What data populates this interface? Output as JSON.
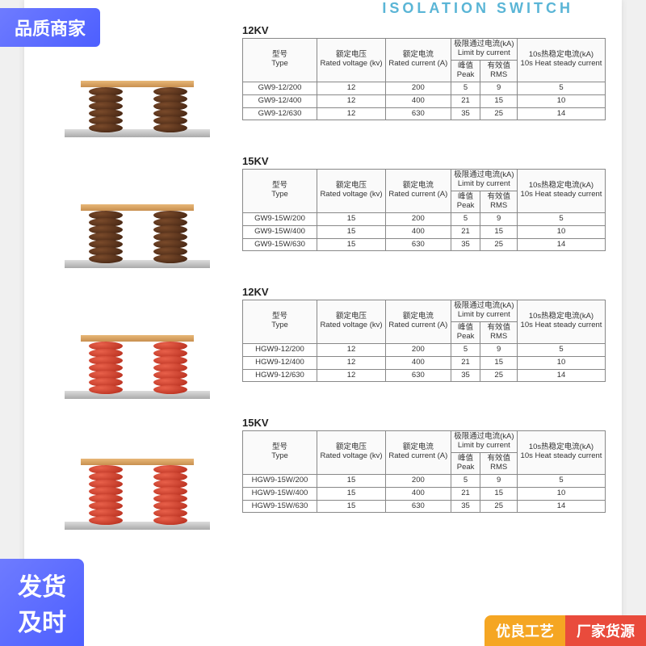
{
  "header": {
    "title": "ISOLATION SWITCH"
  },
  "badges": {
    "topLeft": "品质商家",
    "bottomLeft": "发货\n及时",
    "bottomRight1": "优良工艺",
    "bottomRight2": "厂家货源"
  },
  "tableHeaders": {
    "type": "型号",
    "typeEn": "Type",
    "voltage": "额定电压",
    "voltageEn": "Rated voltage (kv)",
    "current": "额定电流",
    "currentEn": "Rated current (A)",
    "limit": "极限通过电流(kA)",
    "limitEn": "Limit by current",
    "peak": "峰值",
    "peakEn": "Peak",
    "rms": "有效值",
    "rmsEn": "RMS",
    "heat": "10s热稳定电流(kA)",
    "heatEn": "10s Heat steady current"
  },
  "sections": [
    {
      "title": "12KV",
      "insulator": {
        "color": "brown",
        "discs": 6
      },
      "rows": [
        {
          "type": "GW9-12/200",
          "v": "12",
          "c": "200",
          "p": "5",
          "r": "9",
          "h": "5"
        },
        {
          "type": "GW9-12/400",
          "v": "12",
          "c": "400",
          "p": "21",
          "r": "15",
          "h": "10"
        },
        {
          "type": "GW9-12/630",
          "v": "12",
          "c": "630",
          "p": "35",
          "r": "25",
          "h": "14"
        }
      ]
    },
    {
      "title": "15KV",
      "insulator": {
        "color": "brown",
        "discs": 7
      },
      "rows": [
        {
          "type": "GW9-15W/200",
          "v": "15",
          "c": "200",
          "p": "5",
          "r": "9",
          "h": "5"
        },
        {
          "type": "GW9-15W/400",
          "v": "15",
          "c": "400",
          "p": "21",
          "r": "15",
          "h": "10"
        },
        {
          "type": "GW9-15W/630",
          "v": "15",
          "c": "630",
          "p": "35",
          "r": "25",
          "h": "14"
        }
      ]
    },
    {
      "title": "12KV",
      "insulator": {
        "color": "red",
        "discs": 7
      },
      "rows": [
        {
          "type": "HGW9-12/200",
          "v": "12",
          "c": "200",
          "p": "5",
          "r": "9",
          "h": "5"
        },
        {
          "type": "HGW9-12/400",
          "v": "12",
          "c": "400",
          "p": "21",
          "r": "15",
          "h": "10"
        },
        {
          "type": "HGW9-12/630",
          "v": "12",
          "c": "630",
          "p": "35",
          "r": "25",
          "h": "14"
        }
      ]
    },
    {
      "title": "15KV",
      "insulator": {
        "color": "red",
        "discs": 8
      },
      "rows": [
        {
          "type": "HGW9-15W/200",
          "v": "15",
          "c": "200",
          "p": "5",
          "r": "9",
          "h": "5"
        },
        {
          "type": "HGW9-15W/400",
          "v": "15",
          "c": "400",
          "p": "21",
          "r": "15",
          "h": "10"
        },
        {
          "type": "HGW9-15W/630",
          "v": "15",
          "c": "630",
          "p": "35",
          "r": "25",
          "h": "14"
        }
      ]
    }
  ]
}
